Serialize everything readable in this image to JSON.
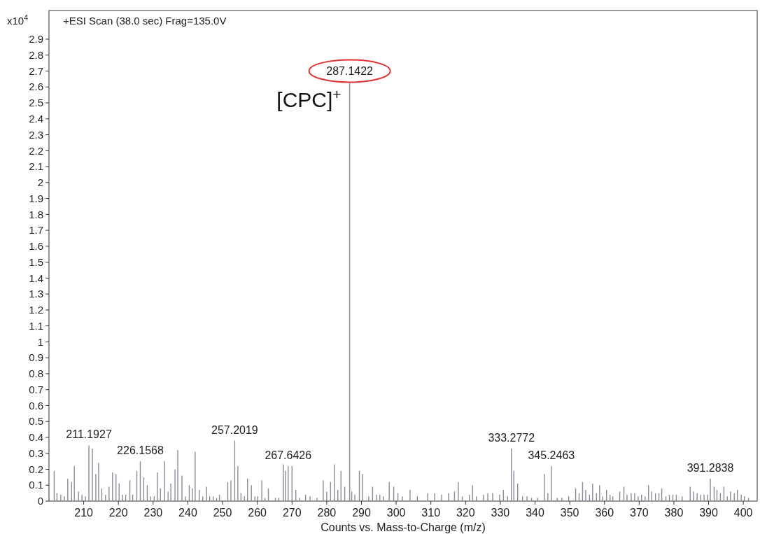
{
  "chart_data": {
    "type": "bar",
    "title": "+ESI Scan (38.0 sec) Frag=135.0V",
    "xlabel": "Counts vs. Mass-to-Charge (m/z)",
    "ylabel": "x10$^{4}$",
    "xlim": [
      200,
      404
    ],
    "xticks": [
      210,
      220,
      230,
      240,
      250,
      260,
      270,
      280,
      290,
      300,
      310,
      320,
      330,
      340,
      350,
      360,
      370,
      380,
      390,
      400
    ],
    "ylim": [
      0,
      3.08
    ],
    "yticks": [
      0,
      0.1,
      0.2,
      0.3,
      0.4,
      0.5,
      0.6,
      0.7,
      0.8,
      0.9,
      1,
      1.1,
      1.2,
      1.3,
      1.4,
      1.5,
      1.6,
      1.7,
      1.8,
      1.9,
      2,
      2.1,
      2.2,
      2.3,
      2.4,
      2.5,
      2.6,
      2.7,
      2.8,
      2.9
    ],
    "grid": false,
    "series": [
      {
        "color": "#8c8c99",
        "x": [
          201.5,
          202.3,
          203.4,
          204.4,
          205.4,
          206.5,
          207.3,
          208.5,
          209.5,
          210.5,
          211.5,
          212.5,
          213.5,
          214.3,
          215.2,
          216.3,
          217.3,
          218.3,
          219.3,
          220.2,
          221.2,
          222.1,
          223.3,
          224.1,
          225.3,
          226.3,
          227.3,
          228.3,
          229.3,
          230.3,
          231.2,
          232.1,
          233.3,
          234.3,
          235.1,
          236.3,
          237.1,
          238.3,
          239.3,
          240.4,
          241.3,
          242.1,
          243.3,
          244.3,
          245.4,
          246.3,
          247.3,
          248.3,
          249.1,
          251.5,
          252.4,
          253.5,
          254.4,
          255.3,
          256.3,
          257.2,
          258.3,
          259.3,
          260.1,
          261.3,
          262.2,
          263.2,
          265.2,
          266.2,
          267.5,
          268.1,
          268.9,
          270.0,
          271.1,
          272.2,
          273.9,
          275.2,
          277.2,
          279.0,
          280.0,
          281.1,
          282.2,
          283.2,
          284.1,
          285.2,
          286.6,
          287.2,
          288.1,
          289.4,
          290.3,
          292.1,
          293.2,
          294.3,
          295.3,
          296.3,
          298.0,
          299.3,
          300.5,
          301.8,
          304.0,
          306.1,
          309.1,
          311.1,
          313.1,
          315.1,
          316.8,
          317.9,
          319.1,
          321.1,
          322.0,
          323.1,
          325.1,
          326.4,
          327.8,
          329.8,
          330.9,
          332.1,
          333.2,
          333.9,
          335.0,
          336.4,
          337.7,
          339.0,
          340.7,
          342.7,
          343.7,
          344.7,
          346.4,
          347.7,
          349.7,
          351.7,
          352.7,
          353.7,
          354.6,
          355.7,
          356.6,
          357.7,
          358.6,
          359.5,
          360.6,
          361.6,
          362.4,
          364.4,
          365.6,
          366.5,
          367.7,
          368.7,
          369.7,
          370.7,
          371.7,
          372.7,
          373.6,
          374.7,
          375.7,
          376.5,
          377.7,
          378.7,
          379.7,
          380.7,
          382.4,
          384.7,
          385.7,
          386.7,
          387.7,
          388.7,
          389.7,
          390.5,
          391.6,
          392.4,
          393.4,
          394.4,
          395.4,
          396.3,
          397.4,
          398.3,
          399.4,
          400.3,
          401.5
        ],
        "values": [
          0.19,
          0.05,
          0.04,
          0.03,
          0.14,
          0.12,
          0.22,
          0.06,
          0.04,
          0.03,
          0.35,
          0.33,
          0.17,
          0.24,
          0.08,
          0.04,
          0.09,
          0.18,
          0.17,
          0.11,
          0.04,
          0.04,
          0.13,
          0.04,
          0.19,
          0.25,
          0.15,
          0.1,
          0.03,
          0.03,
          0.18,
          0.08,
          0.25,
          0.06,
          0.11,
          0.2,
          0.32,
          0.16,
          0.03,
          0.1,
          0.08,
          0.31,
          0.07,
          0.03,
          0.09,
          0.03,
          0.03,
          0.02,
          0.04,
          0.12,
          0.13,
          0.38,
          0.22,
          0.05,
          0.03,
          0.14,
          0.1,
          0.03,
          0.03,
          0.13,
          0.02,
          0.08,
          0.02,
          0.02,
          0.23,
          0.19,
          0.22,
          0.22,
          0.07,
          0.02,
          0.04,
          0.03,
          0.02,
          0.13,
          0.06,
          0.12,
          0.23,
          0.07,
          0.19,
          0.09,
          2.63,
          0.06,
          0.04,
          0.19,
          0.17,
          0.03,
          0.09,
          0.04,
          0.04,
          0.03,
          0.12,
          0.09,
          0.05,
          0.03,
          0.07,
          0.03,
          0.05,
          0.05,
          0.04,
          0.05,
          0.06,
          0.12,
          0.03,
          0.04,
          0.1,
          0.03,
          0.04,
          0.05,
          0.05,
          0.04,
          0.07,
          0.03,
          0.33,
          0.19,
          0.11,
          0.03,
          0.03,
          0.02,
          0.02,
          0.17,
          0.05,
          0.22,
          0.02,
          0.02,
          0.03,
          0.08,
          0.05,
          0.12,
          0.07,
          0.04,
          0.11,
          0.05,
          0.1,
          0.03,
          0.07,
          0.04,
          0.03,
          0.06,
          0.09,
          0.04,
          0.05,
          0.05,
          0.03,
          0.04,
          0.03,
          0.1,
          0.06,
          0.05,
          0.05,
          0.08,
          0.03,
          0.04,
          0.04,
          0.04,
          0.03,
          0.09,
          0.06,
          0.05,
          0.04,
          0.04,
          0.04,
          0.14,
          0.09,
          0.07,
          0.05,
          0.09,
          0.03,
          0.06,
          0.05,
          0.07,
          0.04,
          0.03,
          0.02
        ]
      }
    ],
    "annotations": [
      {
        "text": "211.1927",
        "x": 211.5,
        "y": 0.35
      },
      {
        "text": "226.1568",
        "x": 226.3,
        "y": 0.25
      },
      {
        "text": "257.2019",
        "x": 253.5,
        "y": 0.38
      },
      {
        "text": "267.6426",
        "x": 268.9,
        "y": 0.22
      },
      {
        "text": "287.1422",
        "x": 286.6,
        "y": 2.63
      },
      {
        "text": "333.2772",
        "x": 333.2,
        "y": 0.33
      },
      {
        "text": "345.2463",
        "x": 344.7,
        "y": 0.22
      },
      {
        "text": "391.2838",
        "x": 390.5,
        "y": 0.14
      },
      "[CPC]$^{+}$"
    ]
  }
}
